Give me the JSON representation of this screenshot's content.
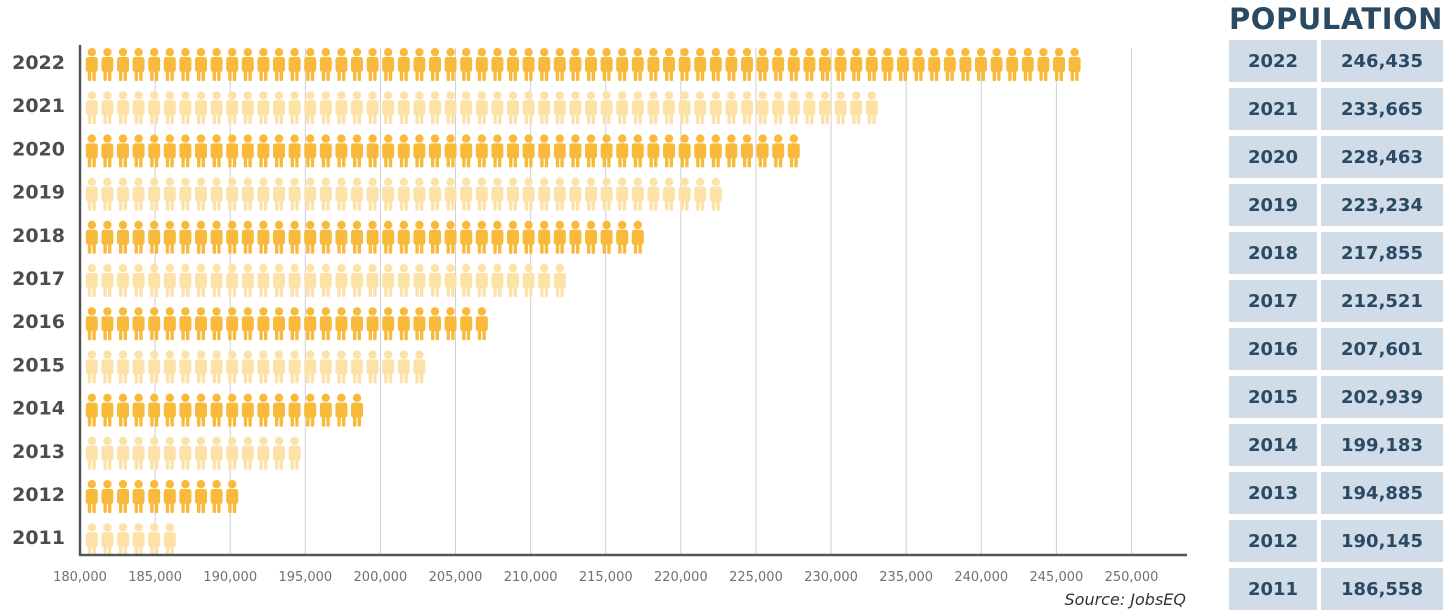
{
  "chart_data": {
    "type": "bar",
    "subtype": "pictograph",
    "orientation": "horizontal",
    "categories": [
      "2022",
      "2021",
      "2020",
      "2019",
      "2018",
      "2017",
      "2016",
      "2015",
      "2014",
      "2013",
      "2012",
      "2011"
    ],
    "values": [
      246435,
      233665,
      228463,
      223234,
      217855,
      212521,
      207601,
      202939,
      199183,
      194885,
      190145,
      186558
    ],
    "xlim": [
      180000,
      250000
    ],
    "xticks": [
      "180,000",
      "185,000",
      "190,000",
      "195,000",
      "200,000",
      "205,000",
      "210,000",
      "215,000",
      "220,000",
      "225,000",
      "230,000",
      "235,000",
      "240,000",
      "245,000",
      "250,000"
    ],
    "grid": "vertical",
    "colors": {
      "dark": "#f9ba3c",
      "light": "#fde2a8"
    },
    "icon": "person-icon"
  },
  "source_text": "Source: JobsEQ",
  "table": {
    "title": "POPULATION",
    "rows": [
      {
        "year": "2022",
        "value": "246,435"
      },
      {
        "year": "2021",
        "value": "233,665"
      },
      {
        "year": "2020",
        "value": "228,463"
      },
      {
        "year": "2019",
        "value": "223,234"
      },
      {
        "year": "2018",
        "value": "217,855"
      },
      {
        "year": "2017",
        "value": "212,521"
      },
      {
        "year": "2016",
        "value": "207,601"
      },
      {
        "year": "2015",
        "value": "202,939"
      },
      {
        "year": "2014",
        "value": "199,183"
      },
      {
        "year": "2013",
        "value": "194,885"
      },
      {
        "year": "2012",
        "value": "190,145"
      },
      {
        "year": "2011",
        "value": "186,558"
      }
    ]
  }
}
